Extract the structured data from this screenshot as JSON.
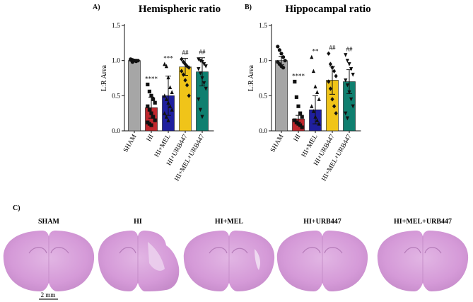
{
  "panels": {
    "a_letter": "A)",
    "b_letter": "B)",
    "c_letter": "C)"
  },
  "chart_data": [
    {
      "type": "bar",
      "title": "Hemispheric ratio",
      "ylabel": "L:R Area",
      "ylim": [
        0,
        1.5
      ],
      "yticks": [
        "0.0",
        "0.5",
        "1.0",
        "1.5"
      ],
      "ytick_values": [
        0,
        0.5,
        1.0,
        1.5
      ],
      "categories": [
        "SHAM",
        "HI",
        "HI+MEL",
        "HI+URB447",
        "HI+MEL+URB447"
      ],
      "values": [
        1.0,
        0.33,
        0.5,
        0.91,
        0.84
      ],
      "errors": [
        0.02,
        0.15,
        0.28,
        0.12,
        0.2
      ],
      "significance": [
        "",
        "****",
        "***",
        "##",
        "##"
      ],
      "colors": [
        "#a6a6a6",
        "#c0272d",
        "#1f1f9e",
        "#f0c419",
        "#0f7f6f"
      ],
      "points": [
        [
          1.02,
          1.01,
          1.0,
          0.99,
          1.0,
          1.01,
          0.98,
          1.0
        ],
        [
          0.66,
          0.56,
          0.5,
          0.45,
          0.4,
          0.35,
          0.3,
          0.25,
          0.2,
          0.15,
          0.12,
          0.1,
          0.08
        ],
        [
          0.95,
          0.92,
          0.76,
          0.62,
          0.55,
          0.5,
          0.45,
          0.4,
          0.35,
          0.3,
          0.25,
          0.2,
          0.15
        ],
        [
          1.02,
          0.98,
          0.95,
          0.92,
          0.9,
          0.85,
          0.8,
          0.72,
          0.65,
          0.5
        ],
        [
          1.02,
          1.0,
          0.98,
          0.95,
          0.92,
          0.88,
          0.82,
          0.75,
          0.68,
          0.6,
          0.45,
          0.3,
          0.2
        ]
      ]
    },
    {
      "type": "bar",
      "title": "Hippocampal ratio",
      "ylabel": "L:R Area",
      "ylim": [
        0,
        1.5
      ],
      "yticks": [
        "0.0",
        "0.5",
        "1.0",
        "1.5"
      ],
      "ytick_values": [
        0,
        0.5,
        1.0,
        1.5
      ],
      "categories": [
        "SHAM",
        "HI",
        "HI+MEL",
        "HI+URB447",
        "HI+MEL+URB447"
      ],
      "values": [
        1.0,
        0.17,
        0.3,
        0.72,
        0.7
      ],
      "errors": [
        0.06,
        0.05,
        0.2,
        0.2,
        0.17
      ],
      "significance": [
        "",
        "****",
        "**",
        "##",
        "##"
      ],
      "colors": [
        "#a6a6a6",
        "#c0272d",
        "#1f1f9e",
        "#f0c419",
        "#0f7f6f"
      ],
      "points": [
        [
          1.2,
          1.15,
          1.1,
          1.05,
          1.0,
          0.98,
          0.95,
          0.92,
          0.9
        ],
        [
          0.7,
          0.48,
          0.35,
          0.25,
          0.2,
          0.15,
          0.12,
          0.1,
          0.08,
          0.05
        ],
        [
          1.05,
          0.85,
          0.63,
          0.55,
          0.45,
          0.35,
          0.28,
          0.2,
          0.15,
          0.1
        ],
        [
          1.1,
          0.95,
          0.9,
          0.85,
          0.78,
          0.7,
          0.6,
          0.45,
          0.35,
          0.25
        ],
        [
          1.08,
          1.0,
          0.95,
          0.88,
          0.8,
          0.72,
          0.65,
          0.55,
          0.45,
          0.35,
          0.25,
          0.18
        ]
      ]
    }
  ],
  "brains": {
    "labels": [
      "SHAM",
      "HI",
      "HI+MEL",
      "HI+URB447",
      "HI+MEL+URB447"
    ],
    "scale_bar": "2 mm"
  }
}
